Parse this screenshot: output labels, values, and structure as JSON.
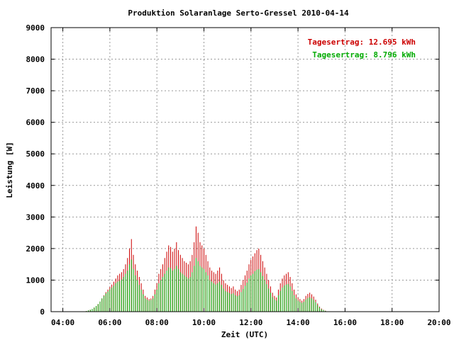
{
  "chart_data": {
    "type": "bar",
    "title": "Produktion Solaranlage Serto-Gressel 2010-04-14",
    "xlabel": "Zeit (UTC)",
    "ylabel": "Leistung [W]",
    "xlim_hours": [
      3.5,
      20.0
    ],
    "ylim": [
      0,
      9000
    ],
    "x_ticks": [
      "04:00",
      "06:00",
      "08:00",
      "10:00",
      "12:00",
      "14:00",
      "16:00",
      "18:00",
      "20:00"
    ],
    "y_ticks": [
      "0",
      "1000",
      "2000",
      "3000",
      "4000",
      "5000",
      "6000",
      "7000",
      "8000",
      "9000"
    ],
    "grid": true,
    "legend_position": "top-right",
    "interval_minutes": 5,
    "start_time": "05:00",
    "series": [
      {
        "name": "Tagesertrag: 12.695 kWh",
        "color": "#cc0000",
        "values": [
          20,
          40,
          60,
          90,
          130,
          180,
          240,
          320,
          420,
          520,
          620,
          700,
          780,
          860,
          950,
          1050,
          1150,
          1200,
          1250,
          1350,
          1500,
          1700,
          2000,
          2300,
          1800,
          1500,
          1300,
          1100,
          900,
          700,
          500,
          450,
          400,
          420,
          500,
          700,
          900,
          1200,
          1350,
          1500,
          1700,
          1900,
          2100,
          2050,
          1900,
          2000,
          2200,
          1950,
          1800,
          1700,
          1600,
          1550,
          1500,
          1600,
          1800,
          2200,
          2700,
          2500,
          2200,
          2100,
          2000,
          1800,
          1600,
          1400,
          1300,
          1250,
          1200,
          1300,
          1400,
          1200,
          1000,
          900,
          850,
          800,
          750,
          800,
          700,
          650,
          700,
          850,
          1000,
          1150,
          1300,
          1500,
          1650,
          1750,
          1850,
          1950,
          2000,
          1800,
          1600,
          1400,
          1200,
          1000,
          800,
          600,
          500,
          450,
          700,
          900,
          1050,
          1150,
          1200,
          1250,
          1100,
          900,
          700,
          550,
          450,
          400,
          350,
          400,
          500,
          560,
          600,
          550,
          480,
          380,
          260,
          160,
          100,
          60,
          30
        ],
        "labels": [
          "Tagesertrag: 12.695 kWh"
        ]
      },
      {
        "name": "Tagesertrag: 8.796 kWh",
        "color": "#00aa00",
        "values": [
          20,
          40,
          60,
          90,
          130,
          180,
          240,
          320,
          420,
          500,
          580,
          640,
          700,
          760,
          820,
          900,
          950,
          980,
          1020,
          1100,
          1200,
          1300,
          1500,
          1650,
          1350,
          1150,
          1000,
          850,
          700,
          550,
          420,
          380,
          350,
          370,
          420,
          550,
          700,
          900,
          1000,
          1100,
          1200,
          1300,
          1400,
          1380,
          1300,
          1350,
          1450,
          1350,
          1250,
          1200,
          1150,
          1100,
          1050,
          1100,
          1250,
          1450,
          1700,
          1600,
          1450,
          1400,
          1350,
          1250,
          1150,
          1000,
          950,
          900,
          860,
          900,
          950,
          850,
          730,
          650,
          620,
          590,
          560,
          580,
          520,
          490,
          520,
          620,
          720,
          820,
          920,
          1050,
          1150,
          1200,
          1280,
          1330,
          1350,
          1250,
          1130,
          1000,
          870,
          730,
          600,
          460,
          390,
          350,
          520,
          660,
          760,
          830,
          860,
          880,
          800,
          660,
          520,
          420,
          350,
          310,
          280,
          310,
          380,
          430,
          460,
          420,
          370,
          300,
          210,
          130,
          80,
          50,
          25
        ],
        "labels": [
          "Tagesertrag: 8.796 kWh"
        ]
      }
    ]
  }
}
